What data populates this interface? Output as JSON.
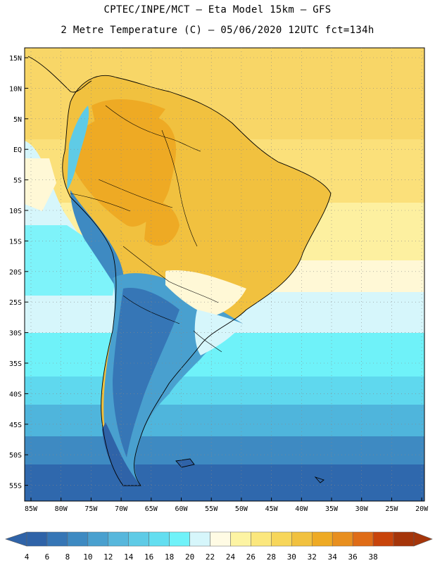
{
  "header": {
    "line1": "CPTEC/INPE/MCT –  Eta Model 15km – GFS",
    "line2": "2 Metre Temperature (C) – 05/06/2020 12UTC fct=134h"
  },
  "map": {
    "lat_labels": [
      "15N",
      "10N",
      "5N",
      "EQ",
      "5S",
      "10S",
      "15S",
      "20S",
      "25S",
      "30S",
      "35S",
      "40S",
      "45S",
      "50S",
      "55S"
    ],
    "lon_labels": [
      "85W",
      "80W",
      "75W",
      "70W",
      "65W",
      "60W",
      "55W",
      "50W",
      "45W",
      "40W",
      "35W",
      "30W",
      "25W",
      "20W"
    ]
  },
  "colorbar": {
    "ticks": [
      "4",
      "6",
      "8",
      "10",
      "12",
      "14",
      "16",
      "18",
      "20",
      "22",
      "24",
      "26",
      "28",
      "30",
      "32",
      "34",
      "36",
      "38"
    ],
    "colors": [
      "#2f63a8",
      "#3676b6",
      "#3e8ac2",
      "#49a0cf",
      "#57b7dc",
      "#5fcbe6",
      "#63def0",
      "#6ff2f9",
      "#d6f6fb",
      "#fffbe4",
      "#fdf4a3",
      "#fbe77d",
      "#f7d65a",
      "#f1c13f",
      "#eeaa24",
      "#e88f1f",
      "#df6c17",
      "#c8440b",
      "#a5350a"
    ]
  }
}
